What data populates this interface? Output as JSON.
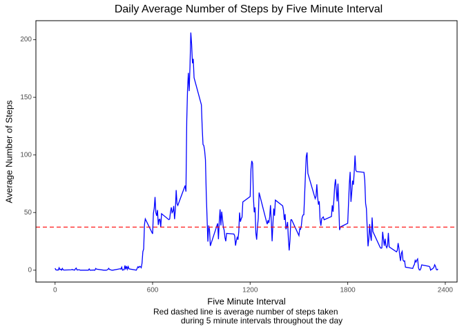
{
  "chart_data": {
    "type": "line",
    "title": "Daily Average Number of Steps by Five Minute Interval",
    "x_label": "Five Minute Interval",
    "y_label": "Average Number of Steps",
    "caption": [
      "Red dashed line is average number of steps taken",
      "during 5 minute intervals throughout the day"
    ],
    "color": "#0000ff",
    "hline": {
      "value": 37.38,
      "color": "#ff0000"
    },
    "xlim": [
      -117.75,
      2472.75
    ],
    "xticks": [
      0,
      600,
      1200,
      1800,
      2400
    ],
    "ylim": [
      -10.3,
      216.5
    ],
    "yticks": [
      0,
      50,
      100,
      150,
      200
    ],
    "grid": false,
    "x": [
      0,
      5,
      10,
      15,
      20,
      25,
      30,
      35,
      40,
      45,
      50,
      55,
      100,
      105,
      110,
      115,
      120,
      125,
      130,
      135,
      140,
      145,
      150,
      155,
      200,
      205,
      210,
      215,
      220,
      225,
      230,
      235,
      240,
      245,
      250,
      255,
      300,
      305,
      310,
      315,
      320,
      325,
      330,
      335,
      340,
      345,
      350,
      355,
      400,
      405,
      410,
      415,
      420,
      425,
      430,
      435,
      440,
      445,
      450,
      455,
      500,
      505,
      510,
      515,
      520,
      525,
      530,
      535,
      540,
      545,
      550,
      555,
      600,
      605,
      610,
      615,
      620,
      625,
      630,
      635,
      640,
      645,
      650,
      655,
      700,
      705,
      710,
      715,
      720,
      725,
      730,
      735,
      740,
      745,
      750,
      755,
      800,
      805,
      810,
      815,
      820,
      825,
      830,
      835,
      840,
      845,
      850,
      855,
      900,
      905,
      910,
      915,
      920,
      925,
      930,
      935,
      940,
      945,
      950,
      955,
      1000,
      1005,
      1010,
      1015,
      1020,
      1025,
      1030,
      1035,
      1040,
      1045,
      1050,
      1055,
      1100,
      1105,
      1110,
      1115,
      1120,
      1125,
      1130,
      1135,
      1140,
      1145,
      1150,
      1155,
      1200,
      1205,
      1210,
      1215,
      1220,
      1225,
      1230,
      1235,
      1240,
      1245,
      1250,
      1255,
      1300,
      1305,
      1310,
      1315,
      1320,
      1325,
      1330,
      1335,
      1340,
      1345,
      1350,
      1355,
      1400,
      1405,
      1410,
      1415,
      1420,
      1425,
      1430,
      1435,
      1440,
      1445,
      1450,
      1455,
      1500,
      1505,
      1510,
      1515,
      1520,
      1525,
      1530,
      1535,
      1540,
      1545,
      1550,
      1555,
      1600,
      1605,
      1610,
      1615,
      1620,
      1625,
      1630,
      1635,
      1640,
      1645,
      1650,
      1655,
      1700,
      1705,
      1710,
      1715,
      1720,
      1725,
      1730,
      1735,
      1740,
      1745,
      1750,
      1755,
      1800,
      1805,
      1810,
      1815,
      1820,
      1825,
      1830,
      1835,
      1840,
      1845,
      1850,
      1855,
      1900,
      1905,
      1910,
      1915,
      1920,
      1925,
      1930,
      1935,
      1940,
      1945,
      1950,
      1955,
      2000,
      2005,
      2010,
      2015,
      2020,
      2025,
      2030,
      2035,
      2040,
      2045,
      2050,
      2055,
      2100,
      2105,
      2110,
      2115,
      2120,
      2125,
      2130,
      2135,
      2140,
      2145,
      2150,
      2155,
      2200,
      2205,
      2210,
      2215,
      2220,
      2225,
      2230,
      2235,
      2240,
      2245,
      2250,
      2255,
      2300,
      2305,
      2310,
      2315,
      2320,
      2325,
      2330,
      2335,
      2340,
      2345,
      2350,
      2355
    ],
    "values": [
      1.7,
      0.3,
      0.1,
      0.2,
      0.1,
      2.1,
      0.5,
      0.9,
      0,
      1.5,
      0.3,
      0.1,
      0.3,
      0.7,
      0.2,
      0.3,
      0,
      1.1,
      1.8,
      0.2,
      0.2,
      0.4,
      0.3,
      0,
      0,
      0,
      1.1,
      0,
      0,
      0.1,
      0,
      0.2,
      0,
      0,
      1.5,
      0.9,
      0,
      0,
      0,
      0,
      0.2,
      0.6,
      1.6,
      0.6,
      0.5,
      0.1,
      0,
      0,
      1.2,
      0.9,
      2.6,
      0,
      0.3,
      0.4,
      4.1,
      0.7,
      3.5,
      0.8,
      3.1,
      1.1,
      0,
      1.6,
      3.0,
      2.2,
      3.3,
      3.0,
      2.1,
      6.1,
      16.0,
      18.3,
      39.5,
      44.5,
      31.5,
      49.3,
      53.8,
      63.5,
      50.0,
      47.1,
      52.2,
      39.3,
      44.0,
      44.2,
      37.4,
      49.0,
      43.8,
      44.4,
      50.5,
      54.5,
      49.9,
      51.0,
      55.7,
      44.3,
      52.3,
      69.5,
      57.8,
      56.2,
      73.4,
      68.2,
      129.4,
      157.5,
      171.2,
      155.4,
      177.3,
      206.2,
      195.9,
      179.6,
      183.4,
      167.0,
      143.5,
      124.0,
      109.1,
      108.1,
      103.7,
      95.9,
      66.2,
      45.2,
      24.8,
      38.8,
      35.0,
      21.1,
      40.6,
      26.9,
      42.4,
      52.7,
      38.9,
      50.8,
      44.3,
      37.4,
      34.7,
      28.3,
      25.1,
      31.9,
      31.4,
      29.7,
      21.3,
      25.5,
      28.4,
      26.5,
      33.4,
      50.0,
      42.0,
      44.6,
      46.0,
      59.2,
      63.9,
      87.7,
      94.8,
      92.8,
      63.4,
      50.2,
      54.5,
      32.4,
      26.5,
      37.7,
      45.1,
      67.3,
      42.3,
      39.9,
      43.3,
      41.0,
      46.2,
      56.4,
      42.8,
      25.1,
      40.0,
      53.5,
      47.3,
      60.8,
      55.8,
      52.0,
      43.6,
      48.7,
      35.5,
      37.5,
      41.8,
      27.5,
      17.1,
      26.1,
      43.6,
      43.8,
      30.0,
      36.1,
      35.5,
      38.8,
      46.0,
      47.8,
      48.1,
      65.3,
      82.9,
      98.7,
      102.1,
      84.0,
      62.1,
      64.1,
      74.5,
      63.2,
      56.9,
      59.8,
      43.9,
      38.6,
      44.7,
      45.5,
      46.2,
      43.7,
      46.6,
      56.3,
      50.7,
      61.2,
      73.4,
      79.0,
      68.9,
      59.7,
      75.1,
      56.5,
      34.8,
      37.5,
      40.7,
      58.0,
      74.7,
      85.3,
      59.3,
      67.8,
      77.7,
      74.2,
      85.3,
      99.5,
      86.6,
      85.6,
      84.9,
      77.8,
      58.0,
      53.4,
      36.3,
      20.7,
      27.4,
      40.0,
      30.2,
      25.5,
      45.7,
      33.5,
      19.6,
      19.0,
      19.3,
      33.3,
      26.8,
      21.2,
      27.3,
      21.3,
      19.5,
      21.3,
      32.3,
      20.2,
      15.9,
      17.2,
      23.5,
      19.2,
      12.5,
      8.0,
      14.7,
      16.3,
      8.7,
      7.8,
      8.1,
      2.6,
      1.5,
      3.7,
      4.8,
      8.5,
      7.1,
      8.7,
      9.8,
      2.2,
      0.3,
      0.1,
      1.6,
      4.6,
      3.3,
      2.8,
      0,
      0.8,
      1.0,
      1.6,
      2.6,
      4.7,
      3.3,
      0.6,
      0.2,
      1.1
    ]
  }
}
